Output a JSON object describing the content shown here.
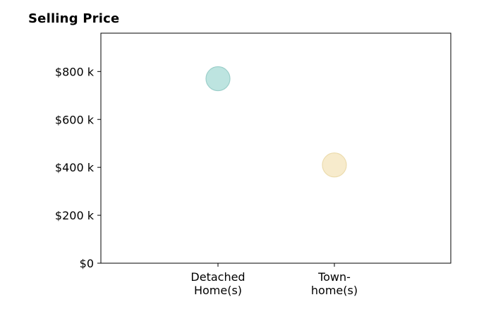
{
  "chart_data": {
    "type": "scatter",
    "title": "Selling Price",
    "categories": [
      "Detached\nHome(s)",
      "Town-\nhome(s)"
    ],
    "values": [
      770,
      410
    ],
    "point_colors": [
      "#b2dfdb",
      "#f6e8c3"
    ],
    "point_edge_colors": [
      "#9ccfca",
      "#ecdcae"
    ],
    "ylim": [
      0,
      960
    ],
    "yticks": [
      0,
      200,
      400,
      600,
      800
    ],
    "ytick_labels": [
      "$0",
      "$200 k",
      "$400 k",
      "$600 k",
      "$800 k"
    ],
    "xlabel": "",
    "ylabel": "",
    "grid": false,
    "legend": "none"
  }
}
